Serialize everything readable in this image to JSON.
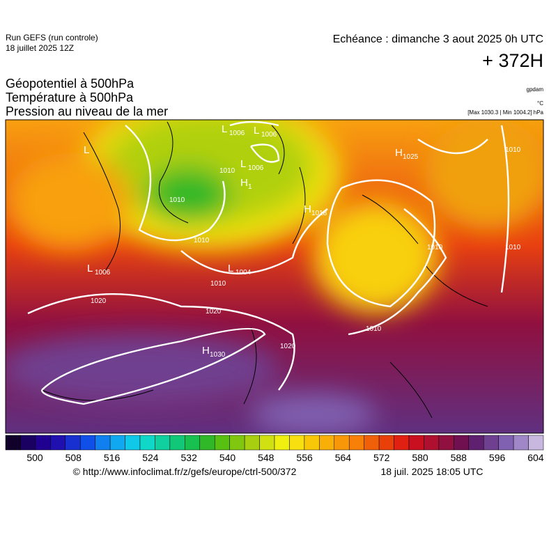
{
  "header": {
    "run": "Run GEFS (run controle)",
    "run_date": "18 juillet 2025 12Z",
    "valid": "Echéance : dimanche 3 aout 2025 0h UTC",
    "lead": "+ 372H"
  },
  "fields": {
    "lines": [
      "Géopotentiel à 500hPa",
      "Température à 500hPa",
      "Pression au niveau de la mer"
    ],
    "units": [
      "gpdam",
      "°C"
    ],
    "range": "[Max 1030.3 | Min 1004.2] hPa"
  },
  "map": {
    "centers": [
      {
        "text": "L",
        "sub": "1006"
      },
      {
        "text": "L",
        "sub": "1006"
      },
      {
        "text": "L",
        "sub": "1006"
      },
      {
        "text": "H",
        "sub": "1"
      },
      {
        "text": "H",
        "sub": "1025"
      },
      {
        "text": "H",
        "sub": "1018"
      },
      {
        "text": "L",
        "sub": "1006"
      },
      {
        "text": "L",
        "sub": "1004"
      },
      {
        "text": "H",
        "sub": "1030"
      },
      {
        "text": "L",
        "sub": null
      }
    ],
    "isobar_labels": [
      "1010",
      "1010",
      "1010",
      "1010",
      "1020",
      "1020",
      "1020",
      "1010",
      "1010",
      "1010",
      "1010"
    ]
  },
  "colorbar": {
    "labels": [
      500,
      508,
      516,
      524,
      532,
      540,
      548,
      556,
      564,
      572,
      580,
      588,
      596,
      604
    ],
    "colors": [
      "#10002a",
      "#1a0060",
      "#200090",
      "#2010b0",
      "#1830d0",
      "#1050e8",
      "#1080f0",
      "#10a8f0",
      "#10c8e8",
      "#10d8c8",
      "#10d0a0",
      "#10c878",
      "#18c050",
      "#30b828",
      "#58c010",
      "#80c810",
      "#a8d010",
      "#d0e010",
      "#f0f010",
      "#f8e010",
      "#f8c808",
      "#f8b008",
      "#f89808",
      "#f88008",
      "#f06008",
      "#e84008",
      "#e02010",
      "#c81020",
      "#b01030",
      "#901040",
      "#701050",
      "#602070",
      "#704090",
      "#8060b0",
      "#a088c8",
      "#c8b8e0"
    ]
  },
  "footer": {
    "url": "© http://www.infoclimat.fr/z/gefs/europe/ctrl-500/372",
    "stamp": "18 juil. 2025 18:05 UTC"
  }
}
